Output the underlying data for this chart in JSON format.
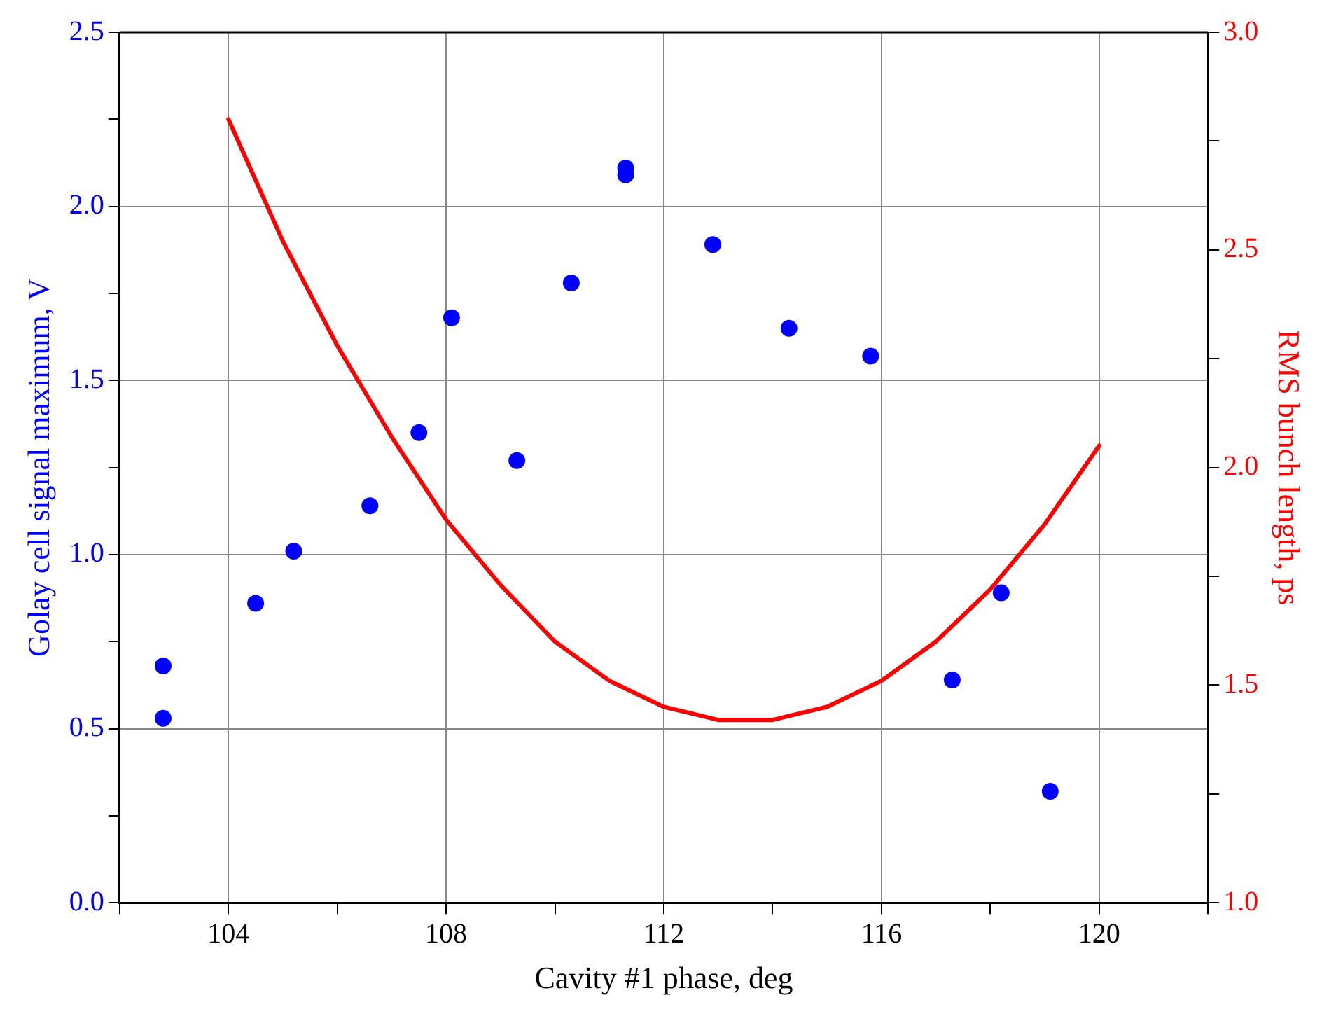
{
  "chart_data": {
    "type": "scatter",
    "xlabel": "Cavity #1 phase, deg",
    "ylabel": "Golay cell signal maximum, V",
    "y2label": "RMS bunch length, ps",
    "xlim": [
      102,
      122
    ],
    "xticks": [
      {
        "value": 102,
        "label": null
      },
      104,
      {
        "value": 106,
        "label": null
      },
      108,
      {
        "value": 110,
        "label": null
      },
      112,
      {
        "value": 114,
        "label": null
      },
      116,
      {
        "value": 118,
        "label": null
      },
      120,
      {
        "value": 122,
        "label": null
      }
    ],
    "ylim": [
      0,
      2.5
    ],
    "yticks": [
      "0.0",
      {
        "value": 0.25,
        "label": null
      },
      {
        "value": 0.5,
        "label": "0.5"
      },
      {
        "value": 0.75,
        "label": null
      },
      {
        "value": 1,
        "label": "1.0"
      },
      {
        "value": 1.25,
        "label": null
      },
      {
        "value": 1.5,
        "label": "1.5"
      },
      {
        "value": 1.75,
        "label": null
      },
      {
        "value": 2,
        "label": "2.0"
      },
      {
        "value": 2.25,
        "label": null
      },
      {
        "value": 2.5,
        "label": "2.5"
      }
    ],
    "y2lim": [
      1,
      3
    ],
    "y2ticks": [
      {
        "value": 1,
        "label": "1.0"
      },
      {
        "value": 1.25,
        "label": null
      },
      {
        "value": 1.5,
        "label": "1.5"
      },
      {
        "value": 1.75,
        "label": null
      },
      {
        "value": 2,
        "label": "2.0"
      },
      {
        "value": 2.25,
        "label": null
      },
      {
        "value": 2.5,
        "label": "2.5"
      },
      {
        "value": 2.75,
        "label": null
      },
      {
        "value": 3,
        "label": "3.0"
      }
    ],
    "grid": true,
    "series": [
      {
        "type": "scatter",
        "color": "#0000ff",
        "marker": "circle",
        "x": [
          102.8,
          102.8,
          104.5,
          105.2,
          106.6,
          107.5,
          108.1,
          109.3,
          110.3,
          111.3,
          111.3,
          112.9,
          114.3,
          115.8,
          117.3,
          118.2,
          119.1
        ],
        "values": [
          0.68,
          0.53,
          0.86,
          1.01,
          1.14,
          1.35,
          1.68,
          1.27,
          1.78,
          2.11,
          2.09,
          1.89,
          1.65,
          1.57,
          0.64,
          0.89,
          0.32
        ]
      },
      {
        "type": "line",
        "axis": "y2",
        "color": "#ff0000",
        "marker": "none",
        "line_style": "solid",
        "x": [
          104,
          105,
          106,
          107,
          108,
          109,
          110,
          111,
          112,
          113,
          114,
          115,
          116,
          117,
          118,
          119,
          120
        ],
        "values": [
          2.8,
          2.52,
          2.28,
          2.07,
          1.88,
          1.73,
          1.6,
          1.51,
          1.45,
          1.42,
          1.42,
          1.45,
          1.51,
          1.6,
          1.72,
          1.87,
          2.05
        ]
      }
    ]
  }
}
